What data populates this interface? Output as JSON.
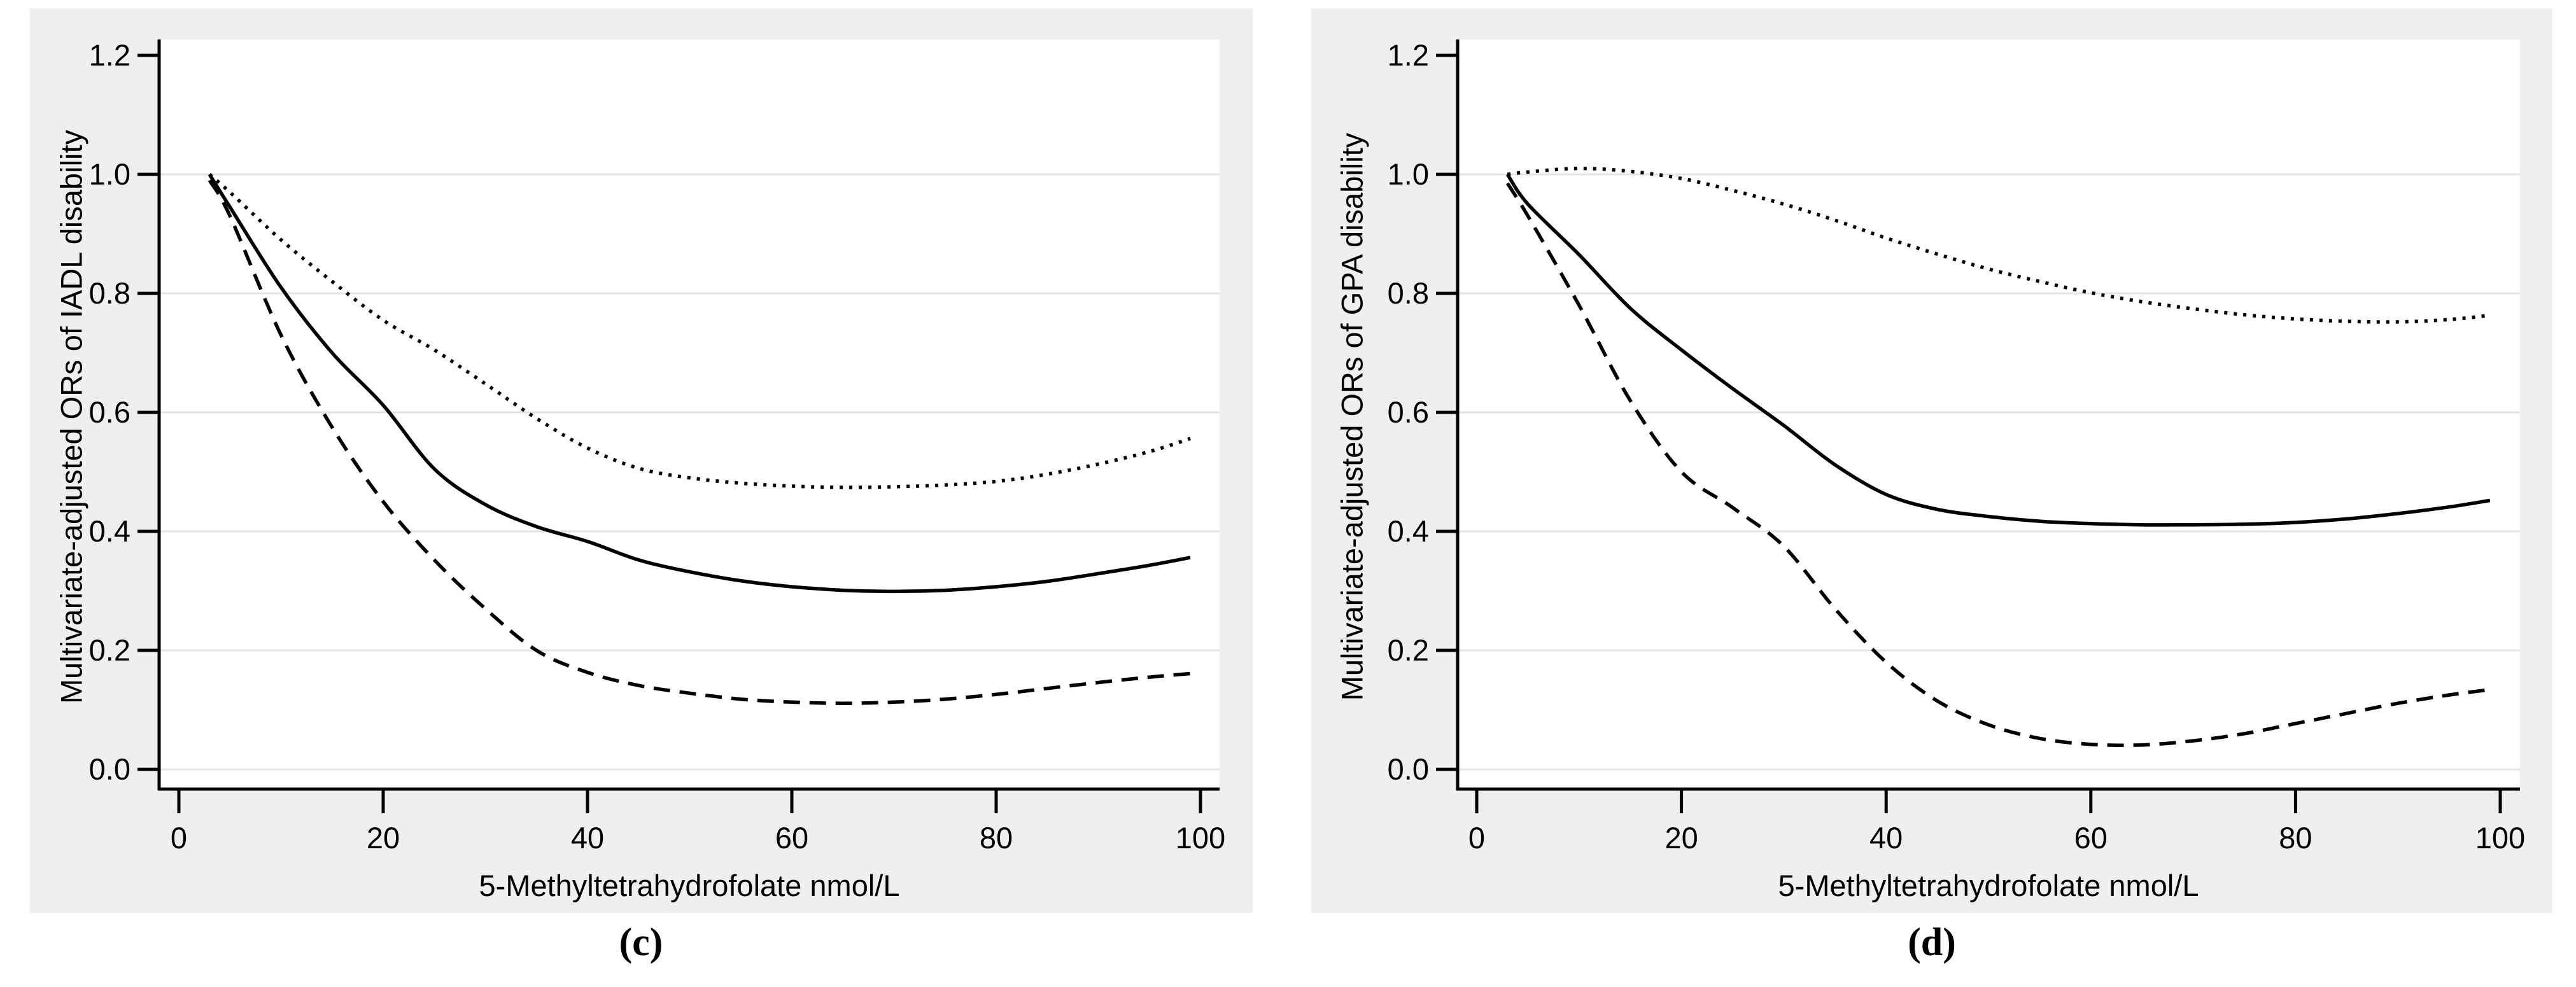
{
  "figure": {
    "background": "#ffffff",
    "panel_background": "#efefef",
    "plot_background": "#ffffff",
    "gridline_color": "#e3e3e3",
    "axis_color": "#000000",
    "curve_color": "#000000"
  },
  "chart_data": [
    {
      "type": "line",
      "caption": "(c)",
      "ylabel": "Multivariate-adjusted ORs of IADL disability",
      "xlabel": "5-Methyltetrahydrofolate nmol/L",
      "xlim": [
        0,
        100
      ],
      "ylim": [
        0.0,
        1.2
      ],
      "x_ticks": [
        0,
        20,
        40,
        60,
        80,
        100
      ],
      "y_ticks": [
        "0.0",
        "0.2",
        "0.4",
        "0.6",
        "0.8",
        "1.0",
        "1.2"
      ],
      "grid": "horizontal gridlines at 0.0-1.0, no legend",
      "x": [
        3,
        5,
        10,
        15,
        20,
        25,
        30,
        35,
        40,
        45,
        50,
        55,
        60,
        65,
        70,
        75,
        80,
        85,
        90,
        95,
        99
      ],
      "series": [
        {
          "name": "solid",
          "line_style": "solid",
          "values": [
            1.0,
            0.945,
            0.81,
            0.7,
            0.612,
            0.505,
            0.445,
            0.408,
            0.383,
            0.352,
            0.332,
            0.317,
            0.307,
            0.301,
            0.299,
            0.301,
            0.307,
            0.316,
            0.329,
            0.343,
            0.356
          ]
        },
        {
          "name": "dotted",
          "line_style": "dotted",
          "values": [
            1.0,
            0.97,
            0.89,
            0.82,
            0.755,
            0.705,
            0.648,
            0.59,
            0.54,
            0.506,
            0.49,
            0.481,
            0.476,
            0.474,
            0.475,
            0.478,
            0.484,
            0.496,
            0.513,
            0.534,
            0.556
          ]
        },
        {
          "name": "dashed",
          "line_style": "dashed",
          "values": [
            0.99,
            0.93,
            0.73,
            0.575,
            0.45,
            0.352,
            0.27,
            0.2,
            0.163,
            0.141,
            0.128,
            0.118,
            0.113,
            0.111,
            0.113,
            0.118,
            0.126,
            0.136,
            0.146,
            0.155,
            0.161
          ]
        }
      ]
    },
    {
      "type": "line",
      "caption": "(d)",
      "ylabel": "Multivariate-adjusted ORs of GPA disability",
      "xlabel": "5-Methyltetrahydrofolate nmol/L",
      "xlim": [
        0,
        100
      ],
      "ylim": [
        0.0,
        1.2
      ],
      "x_ticks": [
        0,
        20,
        40,
        60,
        80,
        100
      ],
      "y_ticks": [
        "0.0",
        "0.2",
        "0.4",
        "0.6",
        "0.8",
        "1.0",
        "1.2"
      ],
      "grid": "horizontal gridlines at 0.0-1.0, no legend",
      "x": [
        3,
        5,
        10,
        15,
        20,
        25,
        30,
        35,
        40,
        45,
        50,
        55,
        60,
        65,
        70,
        75,
        80,
        85,
        90,
        95,
        99
      ],
      "series": [
        {
          "name": "solid",
          "line_style": "solid",
          "values": [
            1.0,
            0.95,
            0.865,
            0.775,
            0.705,
            0.64,
            0.578,
            0.512,
            0.462,
            0.437,
            0.425,
            0.417,
            0.413,
            0.411,
            0.411,
            0.412,
            0.415,
            0.421,
            0.43,
            0.441,
            0.452
          ]
        },
        {
          "name": "dotted",
          "line_style": "dotted",
          "values": [
            1.0,
            1.004,
            1.01,
            1.005,
            0.993,
            0.973,
            0.95,
            0.923,
            0.893,
            0.866,
            0.841,
            0.82,
            0.801,
            0.786,
            0.774,
            0.764,
            0.757,
            0.753,
            0.752,
            0.756,
            0.763
          ]
        },
        {
          "name": "dashed",
          "line_style": "dashed",
          "values": [
            0.985,
            0.93,
            0.78,
            0.62,
            0.5,
            0.44,
            0.375,
            0.27,
            0.18,
            0.115,
            0.075,
            0.052,
            0.042,
            0.041,
            0.048,
            0.06,
            0.077,
            0.094,
            0.111,
            0.125,
            0.134
          ]
        }
      ]
    }
  ]
}
